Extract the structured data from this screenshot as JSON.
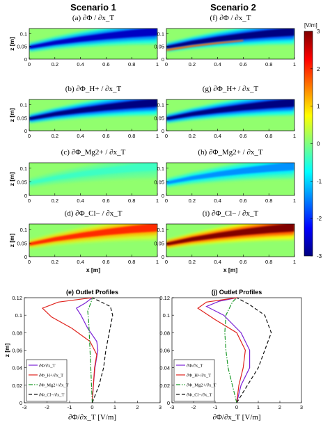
{
  "columns": {
    "left": "Scenario 1",
    "right": "Scenario 2"
  },
  "colorbar": {
    "unit": "[V/m]",
    "ticks": [
      "3",
      "2",
      "1",
      "0",
      "-1",
      "-2",
      "-3"
    ]
  },
  "chart_data": [
    {
      "type": "heatmap",
      "panel": "(a)",
      "title": "∂Φ / ∂x_T",
      "ylabel": "z [m]",
      "xlim": [
        0,
        1
      ],
      "ylim": [
        0,
        0.12
      ],
      "xticks": [
        "0",
        "0.2",
        "0.4",
        "0.6",
        "0.8",
        "1"
      ],
      "yticks": [
        "0",
        "0.05",
        "0.1"
      ],
      "plume": {
        "values_at_x": [
          0,
          0.2,
          0.4,
          0.6,
          0.8,
          1.0
        ],
        "z_center": [
          0.046,
          0.064,
          0.078,
          0.09,
          0.1,
          0.108
        ],
        "peak_value": -2.6
      }
    },
    {
      "type": "heatmap",
      "panel": "(b)",
      "title": "∂Φ_H+ / ∂x_T",
      "ylabel": "z [m]",
      "xlim": [
        0,
        1
      ],
      "ylim": [
        0,
        0.12
      ],
      "xticks": [
        "0",
        "0.2",
        "0.4",
        "0.6",
        "0.8",
        "1"
      ],
      "yticks": [
        "0",
        "0.05",
        "0.1"
      ],
      "plume": {
        "values_at_x": [
          0,
          0.2,
          0.4,
          0.6,
          0.8,
          1.0
        ],
        "z_center": [
          0.046,
          0.064,
          0.078,
          0.09,
          0.1,
          0.108
        ],
        "peak_value": -3.0
      }
    },
    {
      "type": "heatmap",
      "panel": "(c)",
      "title": "∂Φ_Mg2+ / ∂x_T",
      "ylabel": "z [m]",
      "xlim": [
        0,
        1
      ],
      "ylim": [
        0,
        0.12
      ],
      "xticks": [
        "0",
        "0.2",
        "0.4",
        "0.6",
        "0.8",
        "1"
      ],
      "yticks": [
        "0",
        "0.05",
        "0.1"
      ],
      "plume": {
        "values_at_x": [
          0,
          0.2,
          0.4,
          0.6,
          0.8,
          1.0
        ],
        "z_center": [
          0.046,
          0.064,
          0.078,
          0.09,
          0.1,
          0.108
        ],
        "peak_value": -0.4
      }
    },
    {
      "type": "heatmap",
      "panel": "(d)",
      "title": "∂Φ_Cl− / ∂x_T",
      "xlabel": "x [m]",
      "ylabel": "z [m]",
      "xlim": [
        0,
        1
      ],
      "ylim": [
        0,
        0.12
      ],
      "xticks": [
        "0",
        "0.2",
        "0.4",
        "0.6",
        "0.8",
        "1"
      ],
      "yticks": [
        "0",
        "0.05",
        "0.1"
      ],
      "plume": {
        "values_at_x": [
          0,
          0.2,
          0.4,
          0.6,
          0.8,
          1.0
        ],
        "z_center": [
          0.046,
          0.064,
          0.078,
          0.09,
          0.1,
          0.108
        ],
        "peak_value": 2.0
      }
    },
    {
      "type": "heatmap",
      "panel": "(f)",
      "title": "∂Φ / ∂x_T",
      "xlim": [
        0,
        1
      ],
      "ylim": [
        0,
        0.12
      ],
      "xticks": [
        "0",
        "0.2",
        "0.4",
        "0.6",
        "0.8",
        "1"
      ],
      "yticks": [
        "0",
        "0.05",
        "0.1"
      ],
      "plume": {
        "values_at_x": [
          0,
          0.2,
          0.4,
          0.6,
          0.8,
          1.0
        ],
        "z_center": [
          0.046,
          0.064,
          0.078,
          0.09,
          0.1,
          0.108
        ],
        "peak_value": -3.0,
        "secondary_peak_value": 1.6
      }
    },
    {
      "type": "heatmap",
      "panel": "(g)",
      "title": "∂Φ_H+ / ∂x_T",
      "xlim": [
        0,
        1
      ],
      "ylim": [
        0,
        0.12
      ],
      "xticks": [
        "0",
        "0.2",
        "0.4",
        "0.6",
        "0.8",
        "1"
      ],
      "yticks": [
        "0",
        "0.05",
        "0.1"
      ],
      "plume": {
        "values_at_x": [
          0,
          0.2,
          0.4,
          0.6,
          0.8,
          1.0
        ],
        "z_center": [
          0.046,
          0.064,
          0.078,
          0.09,
          0.1,
          0.108
        ],
        "peak_value": -3.0
      }
    },
    {
      "type": "heatmap",
      "panel": "(h)",
      "title": "∂Φ_Mg2+ / ∂x_T",
      "xlim": [
        0,
        1
      ],
      "ylim": [
        0,
        0.12
      ],
      "xticks": [
        "0",
        "0.2",
        "0.4",
        "0.6",
        "0.8",
        "1"
      ],
      "yticks": [
        "0",
        "0.05",
        "0.1"
      ],
      "plume": {
        "values_at_x": [
          0,
          0.2,
          0.4,
          0.6,
          0.8,
          1.0
        ],
        "z_center": [
          0.046,
          0.064,
          0.078,
          0.09,
          0.1,
          0.108
        ],
        "peak_value": -1.4
      }
    },
    {
      "type": "heatmap",
      "panel": "(i)",
      "title": "∂Φ_Cl− / ∂x_T",
      "xlabel": "x [m]",
      "xlim": [
        0,
        1
      ],
      "ylim": [
        0,
        0.12
      ],
      "xticks": [
        "0",
        "0.2",
        "0.4",
        "0.6",
        "0.8",
        "1"
      ],
      "yticks": [
        "0",
        "0.05",
        "0.1"
      ],
      "plume": {
        "values_at_x": [
          0,
          0.2,
          0.4,
          0.6,
          0.8,
          1.0
        ],
        "z_center": [
          0.046,
          0.064,
          0.078,
          0.09,
          0.1,
          0.108
        ],
        "peak_value": 3.0
      }
    },
    {
      "type": "line",
      "panel": "(e)",
      "title": "(e) Outlet Profiles",
      "xlabel": "∂Φ/∂x_T [V/m]",
      "ylabel": "z [m]",
      "xlim": [
        -3,
        3
      ],
      "ylim": [
        0,
        0.12
      ],
      "xticks": [
        "-3",
        "-2",
        "-1",
        "0",
        "1",
        "2",
        "3"
      ],
      "yticks": [
        "0",
        "0.02",
        "0.04",
        "0.06",
        "0.08",
        "0.1",
        "0.12"
      ],
      "legend": [
        "∂Φ/∂x_T",
        "∂Φ_H+/∂x_T",
        "∂Φ_Mg2+/∂x_T",
        "∂Φ_Cl−/∂x_T"
      ],
      "series": [
        {
          "name": "∂Φ/∂x_T",
          "color": "#7b22d6",
          "dash": "none",
          "points": [
            [
              0,
              0
            ],
            [
              0.05,
              0.02
            ],
            [
              0.12,
              0.04
            ],
            [
              0.25,
              0.06
            ],
            [
              0.2,
              0.07
            ],
            [
              -0.2,
              0.085
            ],
            [
              -0.5,
              0.1
            ],
            [
              -0.7,
              0.108
            ],
            [
              -0.3,
              0.114
            ],
            [
              0,
              0.12
            ]
          ]
        },
        {
          "name": "∂Φ_H+/∂x_T",
          "color": "#e0221c",
          "dash": "none",
          "points": [
            [
              0,
              0
            ],
            [
              0.05,
              0.02
            ],
            [
              0.1,
              0.04
            ],
            [
              0.2,
              0.055
            ],
            [
              -0.1,
              0.07
            ],
            [
              -0.9,
              0.085
            ],
            [
              -1.8,
              0.098
            ],
            [
              -2.2,
              0.108
            ],
            [
              -1.5,
              0.115
            ],
            [
              0,
              0.12
            ]
          ]
        },
        {
          "name": "∂Φ_Mg2+/∂x_T",
          "color": "#1d9a2a",
          "dash": "6,2,1.5,2",
          "points": [
            [
              0,
              0
            ],
            [
              -0.05,
              0.03
            ],
            [
              -0.1,
              0.06
            ],
            [
              -0.15,
              0.09
            ],
            [
              -0.2,
              0.105
            ],
            [
              -0.05,
              0.115
            ],
            [
              0,
              0.12
            ]
          ]
        },
        {
          "name": "∂Φ_Cl−/∂x_T",
          "color": "#111111",
          "dash": "5,3",
          "points": [
            [
              0,
              0
            ],
            [
              0.3,
              0.02
            ],
            [
              0.5,
              0.04
            ],
            [
              0.6,
              0.06
            ],
            [
              0.75,
              0.08
            ],
            [
              0.9,
              0.1
            ],
            [
              0.8,
              0.11
            ],
            [
              0,
              0.12
            ]
          ]
        }
      ]
    },
    {
      "type": "line",
      "panel": "(j)",
      "title": "(j) Outlet Profiles",
      "xlabel": "∂Φ/∂x_T [V/m]",
      "xlim": [
        -3,
        3
      ],
      "ylim": [
        0,
        0.12
      ],
      "xticks": [
        "-3",
        "-2",
        "-1",
        "0",
        "1",
        "2",
        "3"
      ],
      "yticks": [
        "0",
        "0.02",
        "0.04",
        "0.06",
        "0.08",
        "0.1",
        "0.12"
      ],
      "legend": [
        "∂Φ/∂x_T",
        "∂Φ_H+/∂x_T",
        "∂Φ_Mg2+/∂x_T",
        "∂Φ_Cl−/∂x_T"
      ],
      "series": [
        {
          "name": "∂Φ/∂x_T",
          "color": "#7b22d6",
          "dash": "none",
          "points": [
            [
              0,
              0
            ],
            [
              0.2,
              0.02
            ],
            [
              0.6,
              0.04
            ],
            [
              0.6,
              0.06
            ],
            [
              0.2,
              0.08
            ],
            [
              -0.6,
              0.1
            ],
            [
              -1.4,
              0.11
            ],
            [
              -0.8,
              0.116
            ],
            [
              0,
              0.12
            ]
          ]
        },
        {
          "name": "∂Φ_H+/∂x_T",
          "color": "#e0221c",
          "dash": "none",
          "points": [
            [
              0,
              0
            ],
            [
              0.1,
              0.02
            ],
            [
              0.3,
              0.04
            ],
            [
              0.4,
              0.06
            ],
            [
              0,
              0.08
            ],
            [
              -1,
              0.095
            ],
            [
              -1.8,
              0.108
            ],
            [
              -1.4,
              0.115
            ],
            [
              0,
              0.12
            ]
          ]
        },
        {
          "name": "∂Φ_Mg2+/∂x_T",
          "color": "#1d9a2a",
          "dash": "6,2,1.5,2",
          "points": [
            [
              0,
              0
            ],
            [
              -0.2,
              0.02
            ],
            [
              -0.4,
              0.04
            ],
            [
              -0.5,
              0.06
            ],
            [
              -0.55,
              0.08
            ],
            [
              -0.5,
              0.1
            ],
            [
              -0.2,
              0.115
            ],
            [
              0,
              0.12
            ]
          ]
        },
        {
          "name": "∂Φ_Cl−/∂x_T",
          "color": "#111111",
          "dash": "5,3",
          "points": [
            [
              0,
              0
            ],
            [
              0.5,
              0.02
            ],
            [
              1,
              0.04
            ],
            [
              1.3,
              0.06
            ],
            [
              1.6,
              0.08
            ],
            [
              1.3,
              0.1
            ],
            [
              0.6,
              0.112
            ],
            [
              0,
              0.12
            ]
          ]
        }
      ]
    }
  ]
}
